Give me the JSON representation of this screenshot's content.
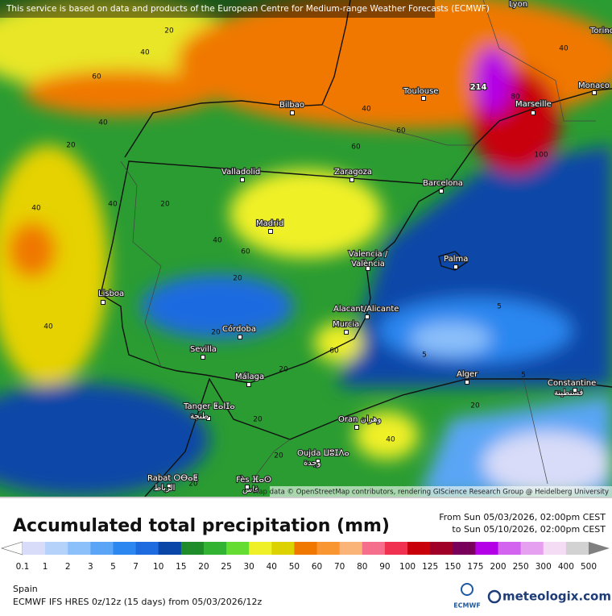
{
  "header": {
    "notice": "This service is based on data and products of the European Centre for Medium-range Weather Forecasts (ECMWF)"
  },
  "map": {
    "cities": [
      {
        "lines": [
          "Lyon"
        ]
      },
      {
        "lines": [
          "Torino"
        ]
      },
      {
        "lines": [
          "Monaco"
        ]
      },
      {
        "lines": [
          "Toulouse"
        ]
      },
      {
        "lines": [
          "Marseille"
        ]
      },
      {
        "lines": [
          "Bilbao"
        ]
      },
      {
        "lines": [
          "Valladolid"
        ]
      },
      {
        "lines": [
          "Zaragoza"
        ]
      },
      {
        "lines": [
          "Barcelona"
        ]
      },
      {
        "lines": [
          "Madrid"
        ]
      },
      {
        "lines": [
          "Valencia /",
          "València"
        ]
      },
      {
        "lines": [
          "Palma"
        ]
      },
      {
        "lines": [
          "Lisboa"
        ]
      },
      {
        "lines": [
          "Alacant/Alicante"
        ]
      },
      {
        "lines": [
          "Murcia"
        ]
      },
      {
        "lines": [
          "Córdoba"
        ]
      },
      {
        "lines": [
          "Sevilla"
        ]
      },
      {
        "lines": [
          "Málaga"
        ]
      },
      {
        "lines": [
          "Alger"
        ]
      },
      {
        "lines": [
          "Constantine",
          "قسنطينة"
        ]
      },
      {
        "lines": [
          "Tanger ⵟⴰⵏⵊⴰ",
          "طنجة"
        ]
      },
      {
        "lines": [
          "Oran وهران"
        ]
      },
      {
        "lines": [
          "Oujda ⵡⵓⵊⴷⴰ",
          "وجدة"
        ]
      },
      {
        "lines": [
          "Rabat ⵔⴱⴰⵟ",
          "الرباط"
        ]
      },
      {
        "lines": [
          "Fès ⴼⴰⵙ",
          "فاس"
        ]
      }
    ],
    "contour_labels": [
      40,
      60,
      20,
      40,
      20,
      40,
      40,
      20,
      40,
      60,
      20,
      40,
      20,
      60,
      20,
      20,
      20,
      20,
      40,
      20,
      5,
      5,
      5,
      40,
      60,
      60,
      80,
      100,
      40,
      214
    ],
    "attribution": "Map data © OpenStreetMap contributors, rendering GIScience Research Group @ Heidelberg University"
  },
  "legend": {
    "title": "Accumulated total precipitation (mm)",
    "period_from": "From Sun 05/03/2026, 02:00pm CEST",
    "period_to": "to Sun 05/10/2026, 02:00pm CEST",
    "levels": [
      "0.1",
      "1",
      "2",
      "3",
      "5",
      "7",
      "10",
      "15",
      "20",
      "25",
      "30",
      "40",
      "50",
      "60",
      "70",
      "80",
      "90",
      "100",
      "125",
      "150",
      "175",
      "200",
      "250",
      "300",
      "400",
      "500"
    ],
    "colors": [
      "#ffffff",
      "#d8dcf8",
      "#b4d2fa",
      "#8cc0fa",
      "#5aa5f5",
      "#2c87f0",
      "#1e6be0",
      "#0a46a8",
      "#1e8c28",
      "#32b432",
      "#64dc32",
      "#f0f028",
      "#dcd200",
      "#f07800",
      "#fa9632",
      "#fab478",
      "#f56e8c",
      "#f03250",
      "#c8000a",
      "#a00028",
      "#78005a",
      "#b400e6",
      "#d264f0",
      "#e6a0f0",
      "#f5dcf5",
      "#d2d2d2",
      "#808080"
    ]
  },
  "footer": {
    "region": "Spain",
    "model": "ECMWF IFS HRES 0z/12z (15 days) from  05/03/2026/12z",
    "ecmwf_logo": "ECMWF",
    "brand": "meteologix.com"
  }
}
